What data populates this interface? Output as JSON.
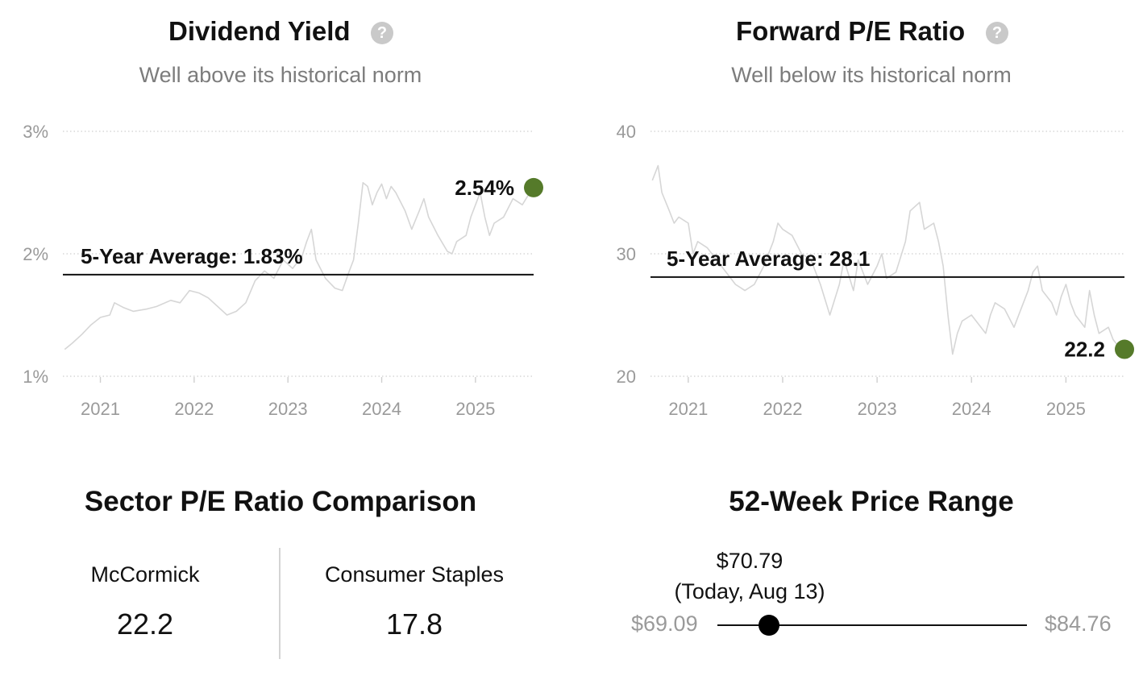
{
  "chart_data": [
    {
      "type": "line",
      "title": "Dividend Yield",
      "subtitle": "Well above its historical norm",
      "unit": "%",
      "ylim": [
        1,
        3
      ],
      "yticks": [
        "3%",
        "2%",
        "1%"
      ],
      "xticks": [
        "2021",
        "2022",
        "2023",
        "2024",
        "2025"
      ],
      "xlim": [
        2020.6,
        2025.62
      ],
      "grid": true,
      "average": {
        "label": "5-Year Average: 1.83%",
        "value": 1.83
      },
      "current": {
        "label": "2.54%",
        "value": 2.54,
        "x": 2025.62
      },
      "series": [
        {
          "values": [
            [
              2020.62,
              1.22
            ],
            [
              2020.7,
              1.27
            ],
            [
              2020.8,
              1.34
            ],
            [
              2020.9,
              1.42
            ],
            [
              2021.0,
              1.48
            ],
            [
              2021.1,
              1.5
            ],
            [
              2021.15,
              1.6
            ],
            [
              2021.25,
              1.56
            ],
            [
              2021.35,
              1.53
            ],
            [
              2021.5,
              1.55
            ],
            [
              2021.6,
              1.57
            ],
            [
              2021.75,
              1.62
            ],
            [
              2021.85,
              1.6
            ],
            [
              2021.95,
              1.7
            ],
            [
              2022.05,
              1.68
            ],
            [
              2022.15,
              1.64
            ],
            [
              2022.25,
              1.57
            ],
            [
              2022.35,
              1.5
            ],
            [
              2022.45,
              1.53
            ],
            [
              2022.55,
              1.6
            ],
            [
              2022.65,
              1.78
            ],
            [
              2022.75,
              1.86
            ],
            [
              2022.85,
              1.8
            ],
            [
              2022.95,
              1.95
            ],
            [
              2023.05,
              1.88
            ],
            [
              2023.15,
              1.98
            ],
            [
              2023.2,
              2.1
            ],
            [
              2023.25,
              2.2
            ],
            [
              2023.3,
              1.95
            ],
            [
              2023.4,
              1.8
            ],
            [
              2023.5,
              1.72
            ],
            [
              2023.58,
              1.7
            ],
            [
              2023.65,
              1.85
            ],
            [
              2023.7,
              1.95
            ],
            [
              2023.75,
              2.25
            ],
            [
              2023.8,
              2.58
            ],
            [
              2023.85,
              2.55
            ],
            [
              2023.9,
              2.4
            ],
            [
              2023.95,
              2.5
            ],
            [
              2024.0,
              2.57
            ],
            [
              2024.05,
              2.45
            ],
            [
              2024.1,
              2.55
            ],
            [
              2024.15,
              2.5
            ],
            [
              2024.25,
              2.35
            ],
            [
              2024.32,
              2.2
            ],
            [
              2024.4,
              2.35
            ],
            [
              2024.45,
              2.45
            ],
            [
              2024.5,
              2.3
            ],
            [
              2024.6,
              2.15
            ],
            [
              2024.7,
              2.02
            ],
            [
              2024.75,
              2.0
            ],
            [
              2024.8,
              2.1
            ],
            [
              2024.9,
              2.15
            ],
            [
              2024.95,
              2.3
            ],
            [
              2025.0,
              2.4
            ],
            [
              2025.05,
              2.5
            ],
            [
              2025.1,
              2.3
            ],
            [
              2025.15,
              2.15
            ],
            [
              2025.2,
              2.25
            ],
            [
              2025.3,
              2.3
            ],
            [
              2025.4,
              2.45
            ],
            [
              2025.5,
              2.4
            ],
            [
              2025.58,
              2.5
            ]
          ]
        }
      ]
    },
    {
      "type": "line",
      "title": "Forward P/E Ratio",
      "subtitle": "Well below its historical norm",
      "ylim": [
        20,
        40
      ],
      "yticks": [
        "40",
        "30",
        "20"
      ],
      "xticks": [
        "2021",
        "2022",
        "2023",
        "2024",
        "2025"
      ],
      "xlim": [
        2020.6,
        2025.62
      ],
      "grid": true,
      "average": {
        "label": "5-Year Average: 28.1",
        "value": 28.1
      },
      "current": {
        "label": "22.2",
        "value": 22.2,
        "x": 2025.62
      },
      "series": [
        {
          "values": [
            [
              2020.62,
              36.0
            ],
            [
              2020.68,
              37.2
            ],
            [
              2020.72,
              35.0
            ],
            [
              2020.8,
              33.5
            ],
            [
              2020.85,
              32.5
            ],
            [
              2020.9,
              33.0
            ],
            [
              2021.0,
              32.5
            ],
            [
              2021.05,
              30.0
            ],
            [
              2021.1,
              31.0
            ],
            [
              2021.2,
              30.5
            ],
            [
              2021.3,
              29.5
            ],
            [
              2021.4,
              28.5
            ],
            [
              2021.5,
              27.5
            ],
            [
              2021.6,
              27.0
            ],
            [
              2021.7,
              27.5
            ],
            [
              2021.8,
              29.0
            ],
            [
              2021.9,
              31.0
            ],
            [
              2021.95,
              32.5
            ],
            [
              2022.0,
              32.0
            ],
            [
              2022.1,
              31.5
            ],
            [
              2022.2,
              30.0
            ],
            [
              2022.3,
              29.5
            ],
            [
              2022.4,
              27.5
            ],
            [
              2022.5,
              25.0
            ],
            [
              2022.6,
              27.5
            ],
            [
              2022.65,
              29.5
            ],
            [
              2022.75,
              27.0
            ],
            [
              2022.8,
              29.5
            ],
            [
              2022.9,
              27.5
            ],
            [
              2023.0,
              29.0
            ],
            [
              2023.05,
              30.0
            ],
            [
              2023.1,
              28.0
            ],
            [
              2023.2,
              28.5
            ],
            [
              2023.3,
              31.0
            ],
            [
              2023.35,
              33.5
            ],
            [
              2023.45,
              34.2
            ],
            [
              2023.5,
              32.0
            ],
            [
              2023.6,
              32.5
            ],
            [
              2023.65,
              31.0
            ],
            [
              2023.7,
              29.0
            ],
            [
              2023.75,
              25.0
            ],
            [
              2023.8,
              21.8
            ],
            [
              2023.85,
              23.5
            ],
            [
              2023.9,
              24.5
            ],
            [
              2024.0,
              25.0
            ],
            [
              2024.1,
              24.0
            ],
            [
              2024.15,
              23.5
            ],
            [
              2024.2,
              25.0
            ],
            [
              2024.25,
              26.0
            ],
            [
              2024.35,
              25.5
            ],
            [
              2024.45,
              24.0
            ],
            [
              2024.5,
              25.0
            ],
            [
              2024.6,
              27.0
            ],
            [
              2024.65,
              28.5
            ],
            [
              2024.7,
              29.0
            ],
            [
              2024.75,
              27.0
            ],
            [
              2024.85,
              26.0
            ],
            [
              2024.9,
              25.0
            ],
            [
              2024.95,
              26.5
            ],
            [
              2025.0,
              27.5
            ],
            [
              2025.05,
              26.0
            ],
            [
              2025.1,
              25.0
            ],
            [
              2025.2,
              24.0
            ],
            [
              2025.25,
              27.0
            ],
            [
              2025.3,
              25.0
            ],
            [
              2025.35,
              23.5
            ],
            [
              2025.45,
              24.0
            ],
            [
              2025.5,
              23.0
            ],
            [
              2025.55,
              22.5
            ]
          ]
        }
      ]
    }
  ],
  "sector": {
    "title": "Sector P/E Ratio Comparison",
    "items": [
      {
        "name": "McCormick",
        "value": "22.2"
      },
      {
        "name": "Consumer Staples",
        "value": "17.8"
      }
    ]
  },
  "range": {
    "title": "52-Week Price Range",
    "current_price": "$70.79",
    "current_note": "(Today, Aug 13)",
    "low": "$69.09",
    "high": "$84.76",
    "low_value": 69.09,
    "high_value": 84.76,
    "current_value": 70.79
  }
}
